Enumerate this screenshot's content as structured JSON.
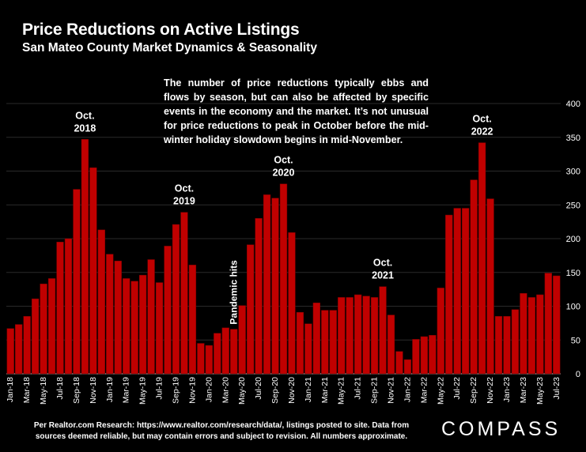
{
  "header": {
    "title": "Price Reductions on Active Listings",
    "subtitle": "San Mateo County Market Dynamics & Seasonality"
  },
  "note": "The number of price reductions typically ebbs and flows by season, but can also be affected by specific events in the economy and the market. It’s not unusual for price reductions to peak in October before the mid-winter holiday slowdown begins in mid-November.",
  "footer": {
    "line1": "Per Realtor.com Research:  https://www.realtor.com/research/data/, listings posted to site. Data from",
    "line2": "sources deemed reliable, but may contain errors and subject to revision. All numbers approximate."
  },
  "logo": "COMPASS",
  "colors": {
    "bar": "#c00000",
    "background": "#000000",
    "grid": "#2a2a2a",
    "text": "#ffffff"
  },
  "chart_data": {
    "type": "bar",
    "categories": [
      "Jan-18",
      "Feb-18",
      "Mar-18",
      "Apr-18",
      "May-18",
      "Jun-18",
      "Jul-18",
      "Aug-18",
      "Sep-18",
      "Oct-18",
      "Nov-18",
      "Dec-18",
      "Jan-19",
      "Feb-19",
      "Mar-19",
      "Apr-19",
      "May-19",
      "Jun-19",
      "Jul-19",
      "Aug-19",
      "Sep-19",
      "Oct-19",
      "Nov-19",
      "Dec-19",
      "Jan-20",
      "Feb-20",
      "Mar-20",
      "Apr-20",
      "May-20",
      "Jun-20",
      "Jul-20",
      "Aug-20",
      "Sep-20",
      "Oct-20",
      "Nov-20",
      "Dec-20",
      "Jan-21",
      "Feb-21",
      "Mar-21",
      "Apr-21",
      "May-21",
      "Jun-21",
      "Jul-21",
      "Aug-21",
      "Sep-21",
      "Oct-21",
      "Nov-21",
      "Dec-21",
      "Jan-22",
      "Feb-22",
      "Mar-22",
      "Apr-22",
      "May-22",
      "Jun-22",
      "Jul-22",
      "Aug-22",
      "Sep-22",
      "Oct-22",
      "Nov-22",
      "Dec-22",
      "Jan-23",
      "Feb-23",
      "Mar-23",
      "Apr-23",
      "May-23",
      "Jun-23",
      "Jul-23"
    ],
    "tick_labels": [
      "Jan-18",
      "Mar-18",
      "May-18",
      "Jul-18",
      "Sep-18",
      "Nov-18",
      "Jan-19",
      "Mar-19",
      "May-19",
      "Jul-19",
      "Sep-19",
      "Nov-19",
      "Jan-20",
      "Mar-20",
      "May-20",
      "Jul-20",
      "Sep-20",
      "Nov-20",
      "Jan-21",
      "Mar-21",
      "May-21",
      "Jul-21",
      "Sep-21",
      "Nov-21",
      "Jan-22",
      "Mar-22",
      "May-22",
      "Jul-22",
      "Sep-22",
      "Nov-22",
      "Jan-23",
      "Mar-23",
      "May-23",
      "Jul-23"
    ],
    "values": [
      67,
      73,
      85,
      111,
      133,
      141,
      195,
      200,
      273,
      347,
      305,
      213,
      177,
      167,
      141,
      137,
      146,
      169,
      135,
      189,
      221,
      239,
      161,
      45,
      42,
      60,
      68,
      66,
      101,
      191,
      230,
      265,
      260,
      281,
      209,
      91,
      74,
      105,
      94,
      94,
      113,
      113,
      117,
      115,
      113,
      129,
      87,
      33,
      21,
      51,
      55,
      57,
      127,
      235,
      245,
      245,
      287,
      342,
      259,
      85,
      85,
      95,
      119,
      113,
      117,
      149,
      145
    ],
    "ylim": [
      0,
      400
    ],
    "yticks": [
      0,
      50,
      100,
      150,
      200,
      250,
      300,
      350,
      400
    ],
    "y_axis_side": "right",
    "grid": true,
    "annotations": [
      {
        "category": "Oct-18",
        "lines": [
          "Oct.",
          "2018"
        ]
      },
      {
        "category": "Oct-19",
        "lines": [
          "Oct.",
          "2019"
        ]
      },
      {
        "category": "Oct-20",
        "lines": [
          "Oct.",
          "2020"
        ]
      },
      {
        "category": "Oct-21",
        "lines": [
          "Oct.",
          "2021"
        ]
      },
      {
        "category": "Oct-22",
        "lines": [
          "Oct.",
          "2022"
        ]
      },
      {
        "category": "Apr-20",
        "text": "Pandemic hits",
        "orientation": "vertical"
      }
    ]
  }
}
